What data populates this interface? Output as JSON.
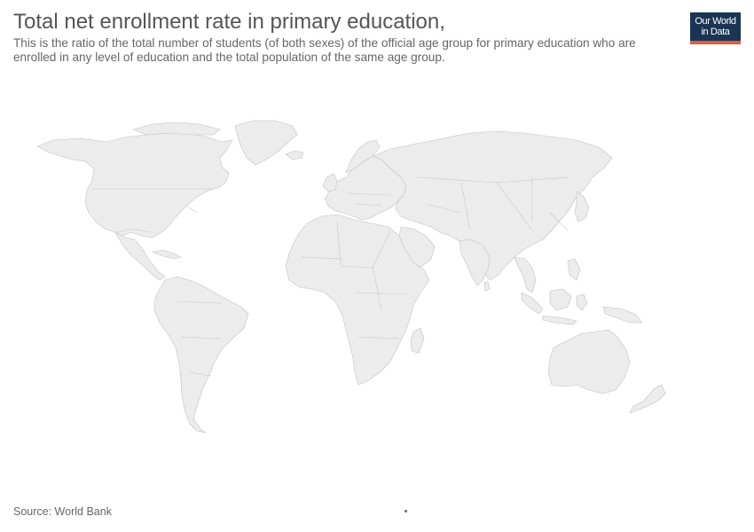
{
  "header": {
    "title": "Total net enrollment rate in primary education,",
    "subtitle": "This is the ratio of the total number of students (of both sexes) of the official age group for primary education who are enrolled in any level of education and the total population of the same age group."
  },
  "logo": {
    "line1": "Our World",
    "line2": "in Data",
    "bg_color": "#1a3454",
    "accent_color": "#e5593d"
  },
  "map": {
    "fill_color": "#ececec",
    "border_color": "#c2c2c2"
  },
  "footer": {
    "source": "Source: World Bank"
  }
}
